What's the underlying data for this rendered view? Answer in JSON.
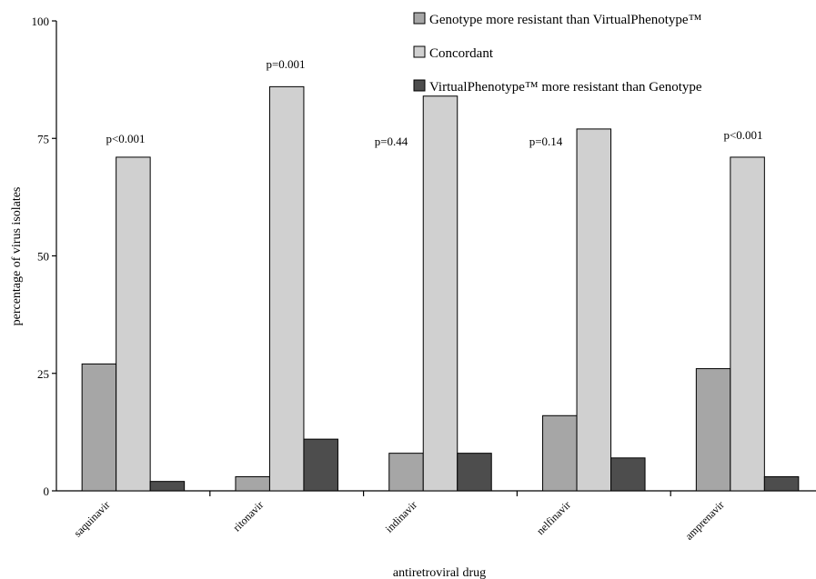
{
  "chart_data": {
    "type": "bar",
    "title": "",
    "xlabel": "antiretroviral drug",
    "ylabel": "percentage of virus isolates",
    "ylim": [
      0,
      100
    ],
    "yticks": [
      0,
      25,
      50,
      75,
      100
    ],
    "grid": false,
    "legend_position": "top-right",
    "categories": [
      "saquinavir",
      "ritonavir",
      "indinavir",
      "nelfinavir",
      "amprenavir"
    ],
    "series": [
      {
        "name": "Genotype more resistant than VirtualPhenotype™",
        "color": "#a6a6a6",
        "values": [
          27,
          3,
          8,
          16,
          26
        ]
      },
      {
        "name": "Concordant",
        "color": "#d0d0d0",
        "values": [
          71,
          86,
          84,
          77,
          71
        ]
      },
      {
        "name": "VirtualPhenotype™ more resistant than Genotype",
        "color": "#4d4d4d",
        "values": [
          2,
          11,
          8,
          7,
          3
        ]
      }
    ],
    "annotations": [
      "p<0.001",
      "p=0.001",
      "p=0.44",
      "p=0.14",
      "p<0.001"
    ]
  }
}
